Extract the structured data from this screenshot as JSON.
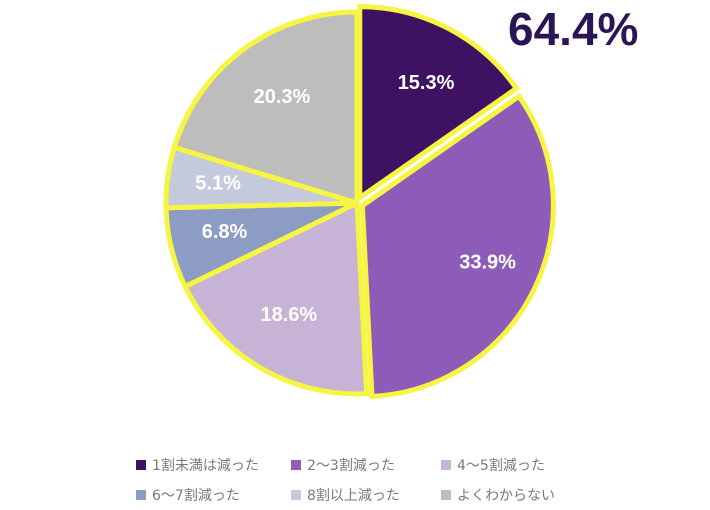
{
  "chart_data": {
    "type": "pie",
    "headline": "64.4%",
    "slices": [
      {
        "label": "1割未満は減った",
        "value": 15.3,
        "display": "15.3%",
        "color": "#3f1163",
        "text_color": "#ffffff"
      },
      {
        "label": "2～3割減った",
        "value": 33.9,
        "display": "33.9%",
        "color": "#8c5cb8",
        "text_color": "#ffffff"
      },
      {
        "label": "4～5割減った",
        "value": 18.6,
        "display": "18.6%",
        "color": "#c7b3d6",
        "text_color": "#ffffff"
      },
      {
        "label": "6～7割減った",
        "value": 6.8,
        "display": "6.8%",
        "color": "#8d9cc4",
        "text_color": "#ffffff"
      },
      {
        "label": "8割以上減った",
        "value": 5.1,
        "display": "5.1%",
        "color": "#c4c9db",
        "text_color": "#ffffff"
      },
      {
        "label": "よくわからない",
        "value": 20.3,
        "display": "20.3%",
        "color": "#bdbdbd",
        "text_color": "#ffffff"
      }
    ],
    "highlight_color": "#f5f542",
    "legend_position": "bottom"
  }
}
